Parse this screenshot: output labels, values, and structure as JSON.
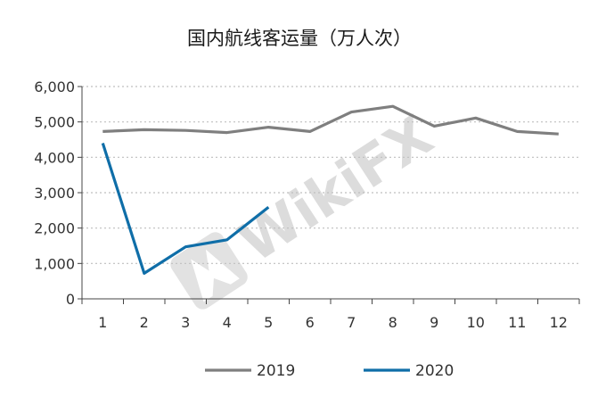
{
  "chart_data": {
    "type": "line",
    "title": "国内航线客运量（万人次）",
    "categories": [
      "1",
      "2",
      "3",
      "4",
      "5",
      "6",
      "7",
      "8",
      "9",
      "10",
      "11",
      "12"
    ],
    "y_ticks": [
      "0",
      "1,000",
      "2,000",
      "3,000",
      "4,000",
      "5,000",
      "6,000"
    ],
    "ylim": [
      0,
      6000
    ],
    "grid": "horizontal-dotted",
    "legend_position": "bottom",
    "series": [
      {
        "name": "2019",
        "color": "#7f7f7f",
        "values": [
          4730,
          4780,
          4760,
          4700,
          4850,
          4730,
          5280,
          5440,
          4880,
          5110,
          4730,
          4660
        ]
      },
      {
        "name": "2020",
        "color": "#0f6ea8",
        "values": [
          4400,
          720,
          1470,
          1670,
          2590,
          null,
          null,
          null,
          null,
          null,
          null,
          null
        ]
      }
    ]
  },
  "watermark": {
    "text": "WikiFX"
  }
}
